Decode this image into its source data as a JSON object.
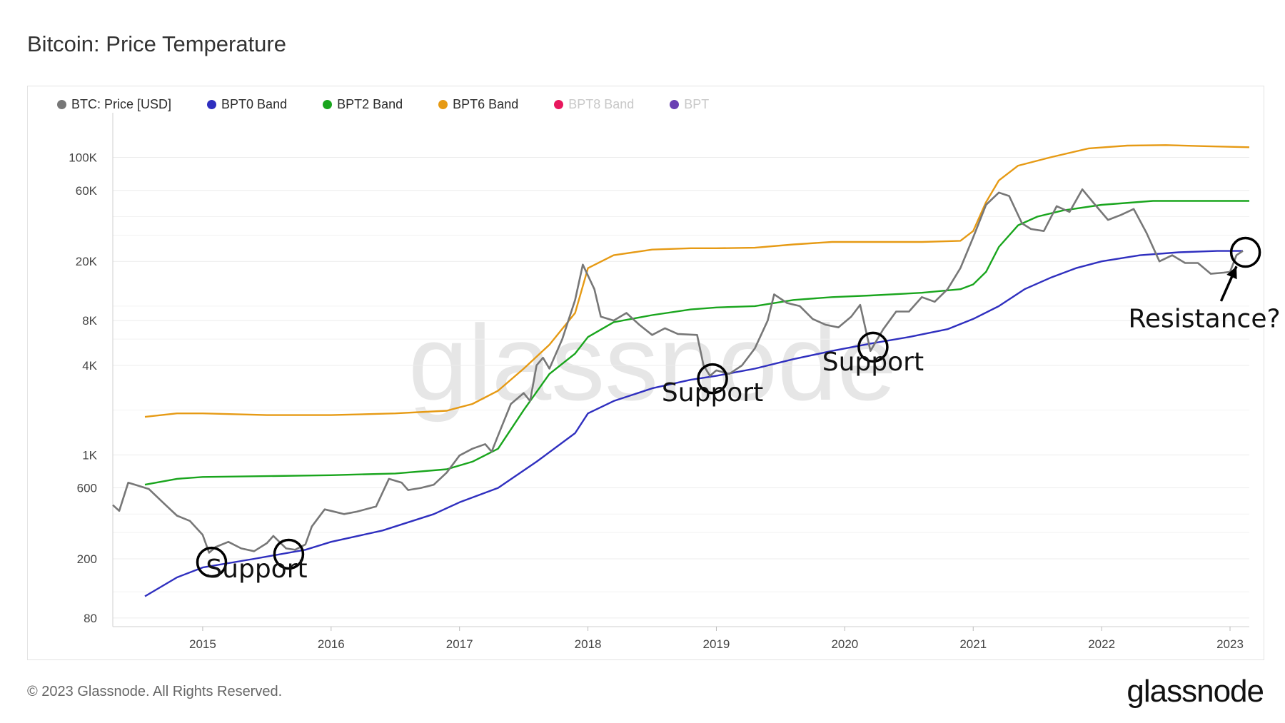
{
  "page": {
    "title": "Bitcoin: Price Temperature",
    "footer": "© 2023 Glassnode. All Rights Reserved.",
    "brand": "glassnode",
    "watermark": "glassnode"
  },
  "colors": {
    "price": "#777777",
    "bpt0": "#2f2fbf",
    "bpt2": "#19a51d",
    "bpt6": "#e69a14",
    "bpt8": "#e8175d",
    "bpt": "#6a3fb3"
  },
  "chart_data": {
    "type": "line",
    "y_scale": "log",
    "ylim": [
      70,
      160000
    ],
    "xlim": [
      2014.3,
      2023.15
    ],
    "y_ticks": [
      {
        "value": 80,
        "label": "80"
      },
      {
        "value": 200,
        "label": "200"
      },
      {
        "value": 600,
        "label": "600"
      },
      {
        "value": 1000,
        "label": "1K"
      },
      {
        "value": 4000,
        "label": "4K"
      },
      {
        "value": 8000,
        "label": "8K"
      },
      {
        "value": 20000,
        "label": "20K"
      },
      {
        "value": 60000,
        "label": "60K"
      },
      {
        "value": 100000,
        "label": "100K"
      }
    ],
    "x_ticks": [
      {
        "value": 2015,
        "label": "2015"
      },
      {
        "value": 2016,
        "label": "2016"
      },
      {
        "value": 2017,
        "label": "2017"
      },
      {
        "value": 2018,
        "label": "2018"
      },
      {
        "value": 2019,
        "label": "2019"
      },
      {
        "value": 2020,
        "label": "2020"
      },
      {
        "value": 2021,
        "label": "2021"
      },
      {
        "value": 2022,
        "label": "2022"
      },
      {
        "value": 2023,
        "label": "2023"
      }
    ],
    "grid": true,
    "legend_position": "top-left",
    "series": [
      {
        "key": "price",
        "name": "BTC: Price [USD]",
        "visible": true,
        "points": [
          [
            2014.3,
            460
          ],
          [
            2014.35,
            420
          ],
          [
            2014.42,
            650
          ],
          [
            2014.5,
            620
          ],
          [
            2014.58,
            590
          ],
          [
            2014.7,
            470
          ],
          [
            2014.8,
            390
          ],
          [
            2014.9,
            360
          ],
          [
            2015.0,
            290
          ],
          [
            2015.05,
            220
          ],
          [
            2015.1,
            240
          ],
          [
            2015.2,
            260
          ],
          [
            2015.3,
            235
          ],
          [
            2015.4,
            225
          ],
          [
            2015.5,
            255
          ],
          [
            2015.55,
            285
          ],
          [
            2015.65,
            235
          ],
          [
            2015.72,
            230
          ],
          [
            2015.8,
            250
          ],
          [
            2015.85,
            330
          ],
          [
            2015.95,
            430
          ],
          [
            2016.0,
            420
          ],
          [
            2016.1,
            400
          ],
          [
            2016.2,
            415
          ],
          [
            2016.35,
            450
          ],
          [
            2016.45,
            690
          ],
          [
            2016.55,
            650
          ],
          [
            2016.6,
            580
          ],
          [
            2016.7,
            600
          ],
          [
            2016.8,
            630
          ],
          [
            2016.9,
            760
          ],
          [
            2017.0,
            990
          ],
          [
            2017.1,
            1100
          ],
          [
            2017.2,
            1180
          ],
          [
            2017.25,
            1050
          ],
          [
            2017.3,
            1350
          ],
          [
            2017.4,
            2200
          ],
          [
            2017.5,
            2600
          ],
          [
            2017.55,
            2300
          ],
          [
            2017.6,
            4000
          ],
          [
            2017.65,
            4500
          ],
          [
            2017.7,
            3800
          ],
          [
            2017.8,
            6000
          ],
          [
            2017.9,
            11000
          ],
          [
            2017.96,
            19000
          ],
          [
            2018.05,
            13000
          ],
          [
            2018.1,
            8500
          ],
          [
            2018.2,
            8000
          ],
          [
            2018.3,
            9000
          ],
          [
            2018.4,
            7500
          ],
          [
            2018.5,
            6400
          ],
          [
            2018.6,
            7100
          ],
          [
            2018.7,
            6500
          ],
          [
            2018.85,
            6400
          ],
          [
            2018.9,
            4000
          ],
          [
            2018.95,
            3400
          ],
          [
            2019.0,
            3700
          ],
          [
            2019.1,
            3500
          ],
          [
            2019.2,
            4000
          ],
          [
            2019.3,
            5200
          ],
          [
            2019.4,
            8000
          ],
          [
            2019.45,
            12000
          ],
          [
            2019.55,
            10500
          ],
          [
            2019.65,
            10000
          ],
          [
            2019.75,
            8200
          ],
          [
            2019.85,
            7500
          ],
          [
            2019.95,
            7200
          ],
          [
            2020.05,
            8500
          ],
          [
            2020.12,
            10200
          ],
          [
            2020.2,
            5000
          ],
          [
            2020.3,
            7000
          ],
          [
            2020.4,
            9200
          ],
          [
            2020.5,
            9200
          ],
          [
            2020.6,
            11500
          ],
          [
            2020.7,
            10700
          ],
          [
            2020.8,
            13000
          ],
          [
            2020.9,
            18000
          ],
          [
            2021.0,
            29000
          ],
          [
            2021.1,
            48000
          ],
          [
            2021.2,
            58000
          ],
          [
            2021.28,
            55000
          ],
          [
            2021.38,
            36000
          ],
          [
            2021.45,
            33000
          ],
          [
            2021.55,
            32000
          ],
          [
            2021.65,
            47000
          ],
          [
            2021.75,
            43000
          ],
          [
            2021.85,
            61000
          ],
          [
            2021.95,
            48000
          ],
          [
            2022.05,
            38000
          ],
          [
            2022.15,
            41000
          ],
          [
            2022.25,
            45000
          ],
          [
            2022.35,
            31000
          ],
          [
            2022.45,
            20000
          ],
          [
            2022.55,
            22000
          ],
          [
            2022.65,
            19500
          ],
          [
            2022.75,
            19500
          ],
          [
            2022.85,
            16500
          ],
          [
            2022.95,
            16800
          ],
          [
            2023.0,
            17000
          ],
          [
            2023.05,
            22000
          ],
          [
            2023.1,
            23500
          ]
        ]
      },
      {
        "key": "bpt0",
        "name": "BPT0 Band",
        "visible": true,
        "points": [
          [
            2014.55,
            112
          ],
          [
            2014.8,
            150
          ],
          [
            2015.0,
            175
          ],
          [
            2015.4,
            200
          ],
          [
            2015.8,
            230
          ],
          [
            2016.0,
            260
          ],
          [
            2016.4,
            310
          ],
          [
            2016.8,
            400
          ],
          [
            2017.0,
            480
          ],
          [
            2017.3,
            600
          ],
          [
            2017.6,
            900
          ],
          [
            2017.9,
            1400
          ],
          [
            2018.0,
            1900
          ],
          [
            2018.2,
            2300
          ],
          [
            2018.5,
            2800
          ],
          [
            2018.8,
            3200
          ],
          [
            2019.0,
            3400
          ],
          [
            2019.3,
            3800
          ],
          [
            2019.6,
            4400
          ],
          [
            2019.9,
            5000
          ],
          [
            2020.2,
            5600
          ],
          [
            2020.5,
            6200
          ],
          [
            2020.8,
            7000
          ],
          [
            2021.0,
            8200
          ],
          [
            2021.2,
            10000
          ],
          [
            2021.4,
            13000
          ],
          [
            2021.6,
            15500
          ],
          [
            2021.8,
            18000
          ],
          [
            2022.0,
            20000
          ],
          [
            2022.3,
            22000
          ],
          [
            2022.6,
            23000
          ],
          [
            2022.9,
            23500
          ],
          [
            2023.1,
            23500
          ]
        ]
      },
      {
        "key": "bpt2",
        "name": "BPT2 Band",
        "visible": true,
        "points": [
          [
            2014.55,
            630
          ],
          [
            2014.8,
            690
          ],
          [
            2015.0,
            710
          ],
          [
            2015.5,
            720
          ],
          [
            2016.0,
            730
          ],
          [
            2016.5,
            750
          ],
          [
            2016.9,
            800
          ],
          [
            2017.1,
            900
          ],
          [
            2017.3,
            1100
          ],
          [
            2017.5,
            2000
          ],
          [
            2017.7,
            3500
          ],
          [
            2017.9,
            4800
          ],
          [
            2018.0,
            6200
          ],
          [
            2018.2,
            7800
          ],
          [
            2018.5,
            8700
          ],
          [
            2018.8,
            9500
          ],
          [
            2019.0,
            9800
          ],
          [
            2019.3,
            10000
          ],
          [
            2019.6,
            11000
          ],
          [
            2019.9,
            11500
          ],
          [
            2020.2,
            11800
          ],
          [
            2020.6,
            12300
          ],
          [
            2020.9,
            13000
          ],
          [
            2021.0,
            14000
          ],
          [
            2021.1,
            17000
          ],
          [
            2021.2,
            25000
          ],
          [
            2021.35,
            35000
          ],
          [
            2021.5,
            40000
          ],
          [
            2021.7,
            44000
          ],
          [
            2022.0,
            48000
          ],
          [
            2022.4,
            51000
          ],
          [
            2022.8,
            51000
          ],
          [
            2023.15,
            51000
          ]
        ]
      },
      {
        "key": "bpt6",
        "name": "BPT6 Band",
        "visible": true,
        "points": [
          [
            2014.55,
            1800
          ],
          [
            2014.8,
            1900
          ],
          [
            2015.0,
            1900
          ],
          [
            2015.5,
            1850
          ],
          [
            2016.0,
            1850
          ],
          [
            2016.5,
            1900
          ],
          [
            2016.9,
            1980
          ],
          [
            2017.1,
            2200
          ],
          [
            2017.3,
            2700
          ],
          [
            2017.5,
            3800
          ],
          [
            2017.7,
            5500
          ],
          [
            2017.9,
            9000
          ],
          [
            2018.0,
            18000
          ],
          [
            2018.2,
            22000
          ],
          [
            2018.5,
            24000
          ],
          [
            2018.8,
            24500
          ],
          [
            2019.0,
            24500
          ],
          [
            2019.3,
            24700
          ],
          [
            2019.6,
            26000
          ],
          [
            2019.9,
            27000
          ],
          [
            2020.2,
            27000
          ],
          [
            2020.6,
            27000
          ],
          [
            2020.9,
            27500
          ],
          [
            2021.0,
            32000
          ],
          [
            2021.1,
            50000
          ],
          [
            2021.2,
            70000
          ],
          [
            2021.35,
            88000
          ],
          [
            2021.6,
            100000
          ],
          [
            2021.9,
            115000
          ],
          [
            2022.2,
            120000
          ],
          [
            2022.5,
            121000
          ],
          [
            2022.8,
            119000
          ],
          [
            2023.15,
            117000
          ]
        ]
      },
      {
        "key": "bpt8",
        "name": "BPT8 Band",
        "visible": false,
        "points": []
      },
      {
        "key": "bpt",
        "name": "BPT",
        "visible": false,
        "points": []
      }
    ],
    "annotations": [
      {
        "label": "Support",
        "circles": [
          [
            2015.07,
            190
          ],
          [
            2015.67,
            215
          ]
        ],
        "text_at": [
          2015.42,
          150
        ]
      },
      {
        "label": "Support",
        "circles": [
          [
            2018.97,
            3250
          ]
        ],
        "text_at": [
          2018.97,
          2300
        ]
      },
      {
        "label": "Support",
        "circles": [
          [
            2020.22,
            5300
          ]
        ],
        "text_at": [
          2020.22,
          3700
        ]
      },
      {
        "label": "Resistance?",
        "circles": [
          [
            2023.12,
            23000
          ]
        ],
        "text_at": [
          2022.8,
          7200
        ],
        "arrow": [
          [
            2022.93,
            10800
          ],
          [
            2023.05,
            18500
          ]
        ]
      }
    ]
  }
}
